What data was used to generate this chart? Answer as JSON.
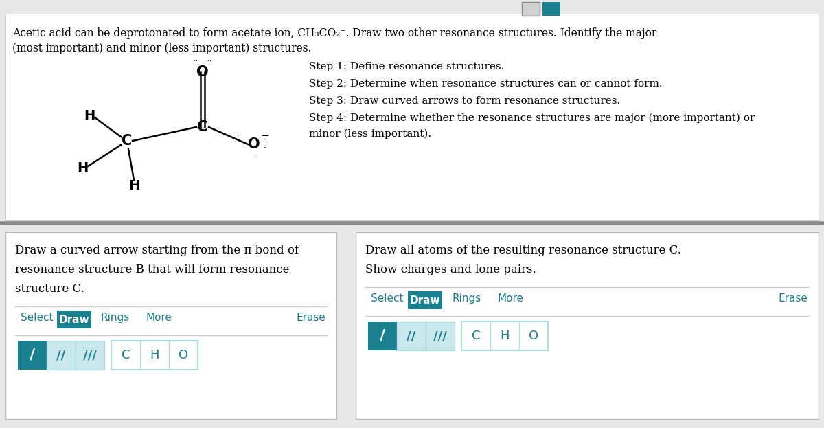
{
  "bg_top": "#e8e8e8",
  "bg_white": "#ffffff",
  "teal": "#1a7f8e",
  "teal_text": "#1a7f8e",
  "border_color": "#cccccc",
  "divider_color": "#999999",
  "text_color": "#000000",
  "title_text_line1": "Acetic acid can be deprotonated to form acetate ion, CH₃CO₂⁻. Draw two other resonance structures. Identify the major",
  "title_text_line2": "(most important) and minor (less important) structures.",
  "step1": "Step 1: Define resonance structures.",
  "step2": "Step 2: Determine when resonance structures can or cannot form.",
  "step3": "Step 3: Draw curved arrows to form resonance structures.",
  "step4a": "Step 4: Determine whether the resonance structures are major (more important) or",
  "step4b": "minor (less important).",
  "left_panel_line1": "Draw a curved arrow starting from the π bond of",
  "left_panel_line2": "resonance structure B that will form resonance",
  "left_panel_line3": "structure C.",
  "right_panel_line1": "Draw all atoms of the resulting resonance structure C.",
  "right_panel_line2": "Show charges and lone pairs.",
  "toolbar_items": [
    "Select",
    "Draw",
    "Rings",
    "More",
    "Erase"
  ],
  "bond_buttons": [
    "/",
    "//",
    "///"
  ],
  "atom_buttons": [
    "C",
    "H",
    "O"
  ],
  "nav_btn1_color": "#d0d0d0",
  "nav_btn2_color": "#1a7f8e"
}
